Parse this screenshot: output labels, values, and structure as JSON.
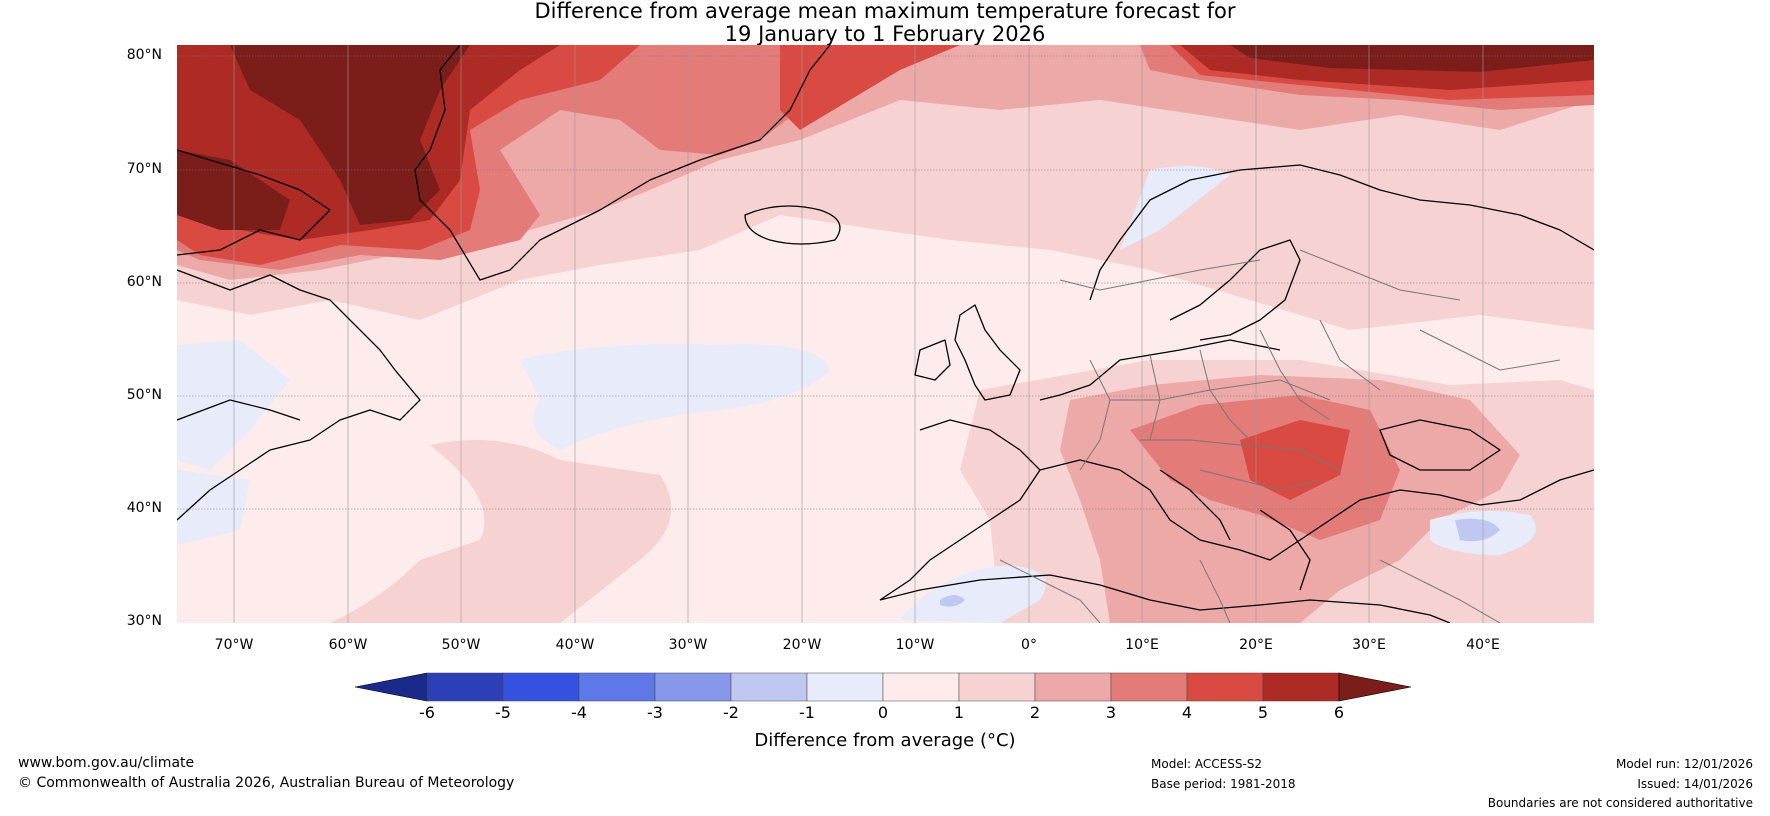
{
  "title": {
    "line1": "Difference from average mean maximum temperature forecast for",
    "line2": "19 January to 1 February 2026"
  },
  "map": {
    "lat_labels": [
      "80°N",
      "70°N",
      "60°N",
      "50°N",
      "40°N",
      "30°N"
    ],
    "lon_labels": [
      "70°W",
      "60°W",
      "50°W",
      "40°W",
      "30°W",
      "20°W",
      "10°W",
      "0°",
      "10°E",
      "20°E",
      "30°E",
      "40°E"
    ]
  },
  "colorbar": {
    "tick_labels": [
      "-6",
      "-5",
      "-4",
      "-3",
      "-2",
      "-1",
      "0",
      "1",
      "2",
      "3",
      "4",
      "5",
      "6"
    ],
    "colors": [
      "#1a2a8a",
      "#2b3fb7",
      "#3452df",
      "#5f78e8",
      "#8798ea",
      "#c0c8f2",
      "#e8ebfa",
      "#fdeceb",
      "#f6d3d2",
      "#eda9a8",
      "#e37b78",
      "#d94a43",
      "#ad2a25",
      "#7b1e1a"
    ],
    "label": "Difference from average (°C)"
  },
  "footer": {
    "website": "www.bom.gov.au/climate",
    "copyright": "© Commonwealth of Australia 2026, Australian Bureau of Meteorology",
    "model": "Model: ACCESS-S2",
    "base_period": "Base period: 1981-2018",
    "model_run": "Model run: 12/01/2026",
    "issued": "Issued: 14/01/2026",
    "disclaimer": "Boundaries are not considered authoritative"
  }
}
